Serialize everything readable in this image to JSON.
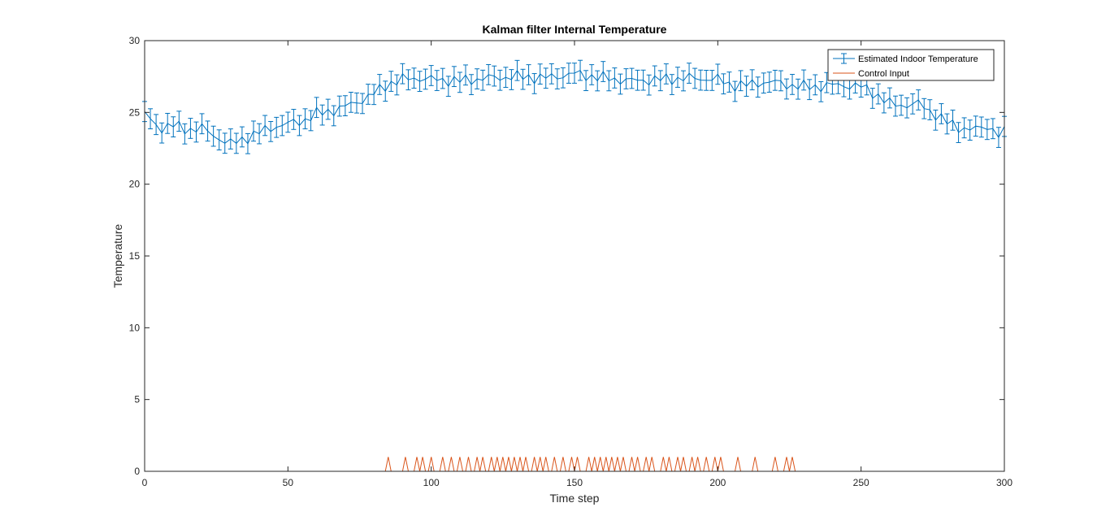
{
  "chart_data": {
    "type": "line",
    "title": "Kalman filter Internal Temperature",
    "xlabel": "Time step",
    "ylabel": "Temperature",
    "xlim": [
      0,
      300
    ],
    "ylim": [
      0,
      30
    ],
    "xticks": [
      0,
      50,
      100,
      150,
      200,
      250,
      300
    ],
    "yticks": [
      0,
      5,
      10,
      15,
      20,
      25,
      30
    ],
    "grid": false,
    "legend_position": "top-right",
    "colors": {
      "estimate": "#0072BD",
      "control": "#D95319",
      "axes": "#262626"
    },
    "series": [
      {
        "name": "Estimated Indoor Temperature",
        "style": "errorbar",
        "error_halfwidth": 0.7,
        "x_step": 2,
        "anchors": [
          [
            0,
            24.9
          ],
          [
            5,
            23.9
          ],
          [
            10,
            24.1
          ],
          [
            15,
            23.8
          ],
          [
            20,
            23.9
          ],
          [
            25,
            23.3
          ],
          [
            30,
            22.8
          ],
          [
            35,
            23.2
          ],
          [
            40,
            23.6
          ],
          [
            45,
            24.0
          ],
          [
            50,
            24.2
          ],
          [
            55,
            24.4
          ],
          [
            60,
            24.9
          ],
          [
            65,
            25.1
          ],
          [
            70,
            25.4
          ],
          [
            75,
            25.8
          ],
          [
            80,
            26.3
          ],
          [
            85,
            27.0
          ],
          [
            90,
            27.3
          ],
          [
            95,
            27.4
          ],
          [
            100,
            27.3
          ],
          [
            110,
            27.2
          ],
          [
            120,
            27.4
          ],
          [
            130,
            27.5
          ],
          [
            140,
            27.4
          ],
          [
            150,
            27.7
          ],
          [
            160,
            27.4
          ],
          [
            170,
            27.2
          ],
          [
            180,
            27.3
          ],
          [
            190,
            27.4
          ],
          [
            200,
            27.3
          ],
          [
            205,
            26.9
          ],
          [
            210,
            26.9
          ],
          [
            215,
            27.1
          ],
          [
            220,
            27.1
          ],
          [
            225,
            26.9
          ],
          [
            230,
            26.8
          ],
          [
            235,
            26.8
          ],
          [
            240,
            26.9
          ],
          [
            245,
            26.9
          ],
          [
            250,
            26.8
          ],
          [
            255,
            26.3
          ],
          [
            260,
            25.6
          ],
          [
            265,
            25.5
          ],
          [
            270,
            25.6
          ],
          [
            275,
            25.0
          ],
          [
            280,
            24.3
          ],
          [
            285,
            23.9
          ],
          [
            290,
            23.8
          ],
          [
            295,
            24.1
          ],
          [
            298,
            23.4
          ],
          [
            300,
            23.6
          ]
        ]
      },
      {
        "name": "Control Input",
        "style": "line",
        "baseline": 0,
        "pulse_height": 1,
        "pulse_width": 2,
        "pulses_at": [
          85,
          91,
          95,
          97,
          100,
          104,
          107,
          110,
          113,
          116,
          118,
          121,
          123,
          125,
          127,
          129,
          131,
          133,
          136,
          138,
          140,
          143,
          146,
          149,
          151,
          155,
          157,
          159,
          161,
          163,
          165,
          167,
          170,
          172,
          175,
          177,
          181,
          183,
          186,
          188,
          191,
          193,
          196,
          199,
          201,
          207,
          213,
          220,
          224,
          226
        ]
      }
    ]
  }
}
